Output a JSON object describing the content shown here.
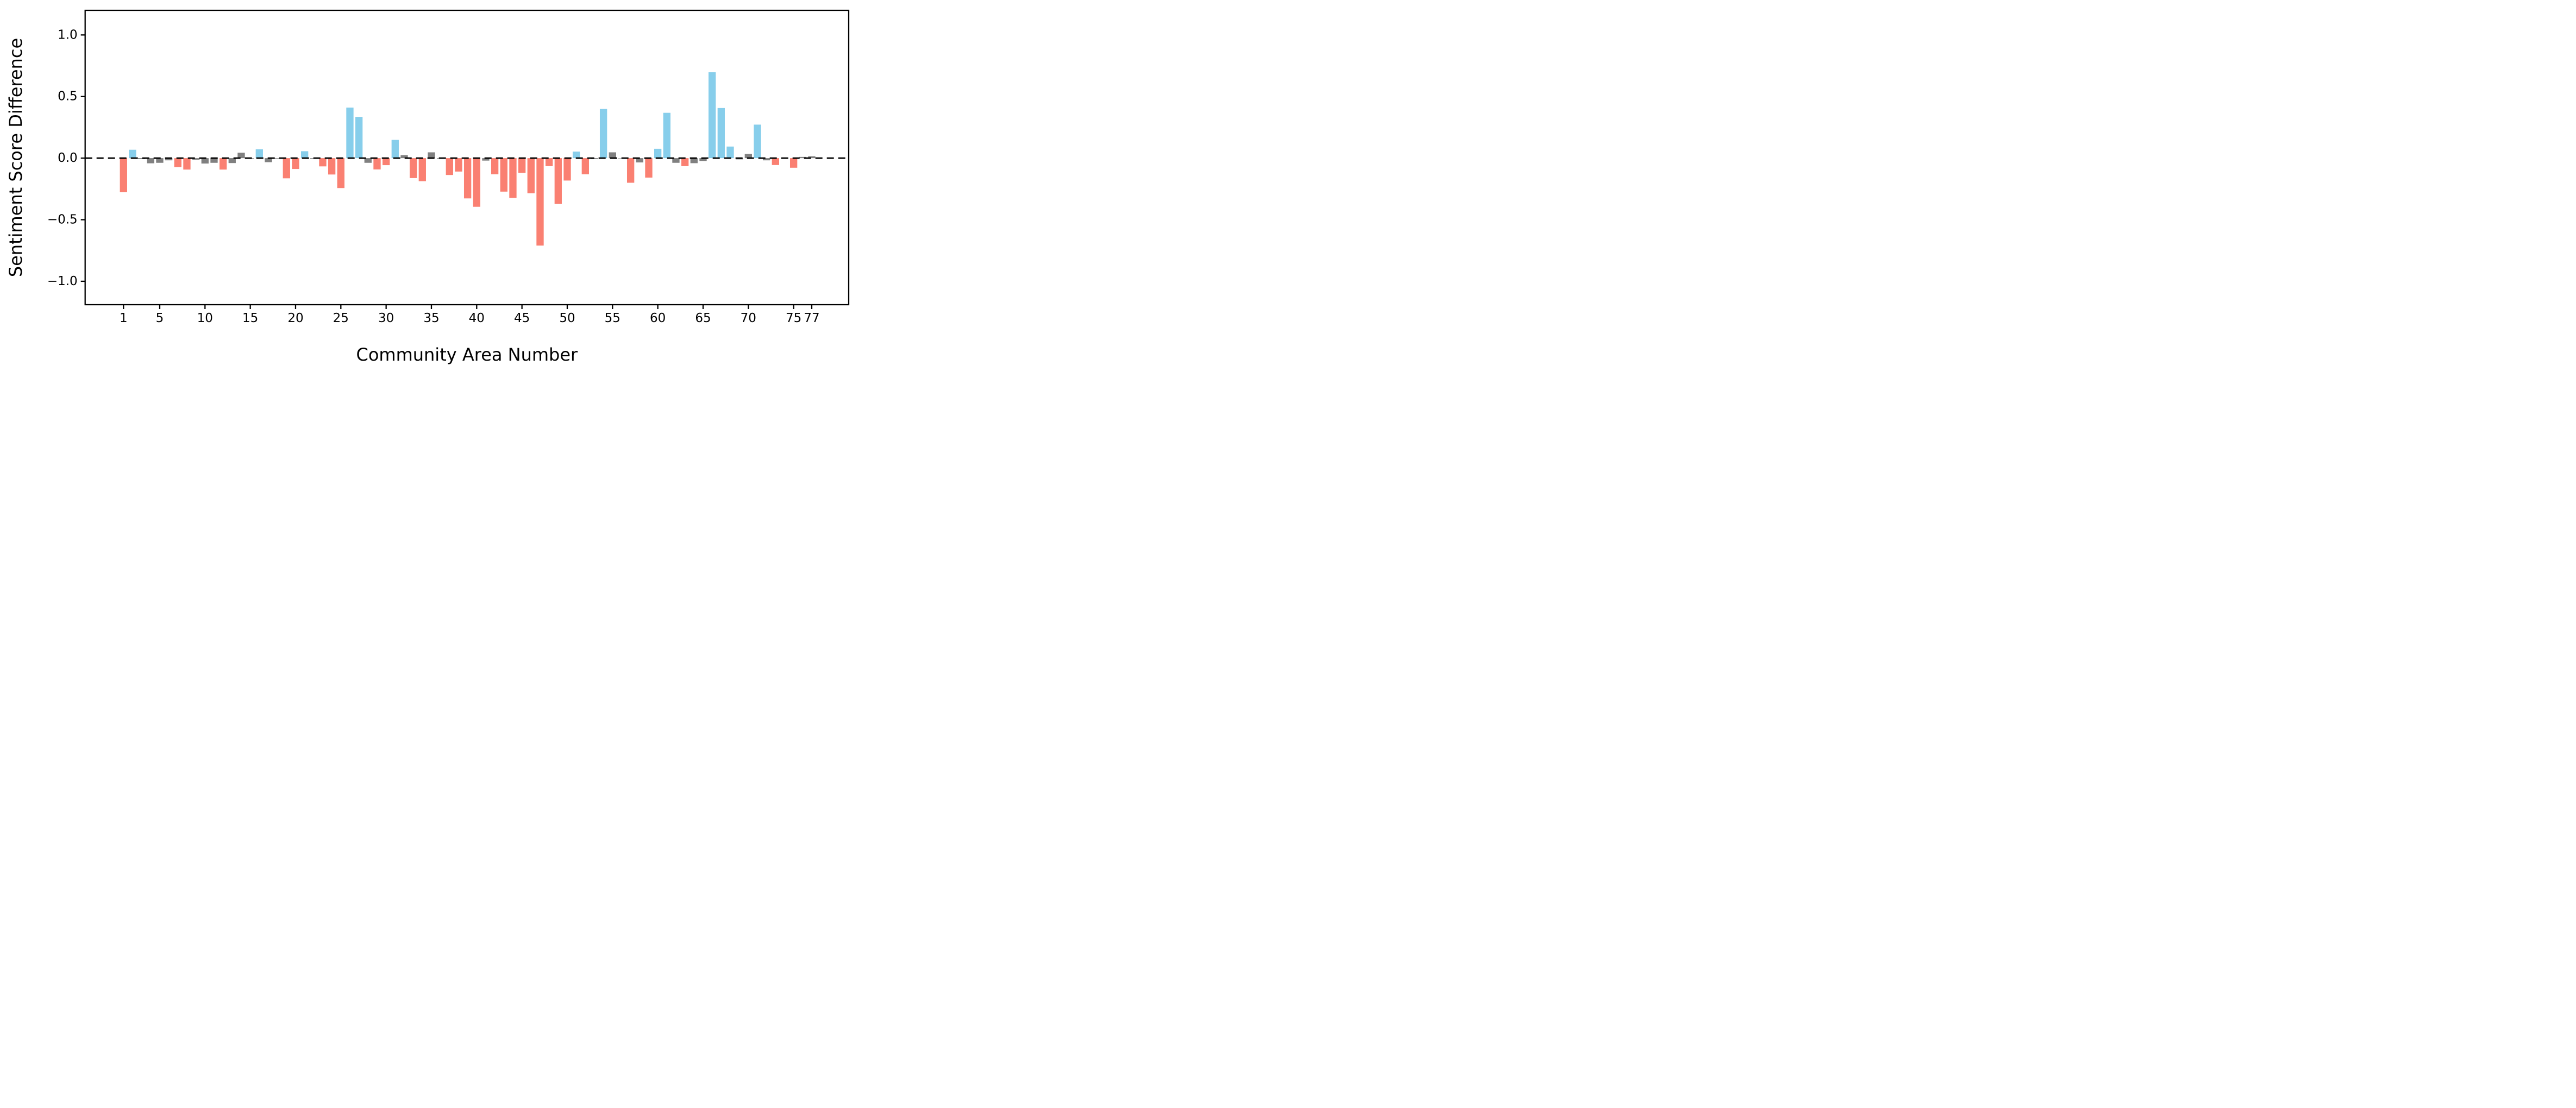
{
  "chart_data": {
    "type": "bar",
    "title": "",
    "xlabel": "Community Area Number",
    "ylabel": "Sentiment Score Difference",
    "x_start": 1,
    "x_end": 77,
    "values": [
      -0.277,
      0.068,
      -0.008,
      -0.042,
      -0.038,
      -0.018,
      -0.073,
      -0.093,
      -0.013,
      -0.044,
      -0.038,
      -0.093,
      -0.04,
      0.044,
      -0.005,
      0.072,
      -0.033,
      -0.005,
      -0.164,
      -0.088,
      0.056,
      -0.006,
      -0.067,
      -0.133,
      -0.243,
      0.41,
      0.335,
      -0.038,
      -0.092,
      -0.057,
      0.148,
      0.024,
      -0.162,
      -0.187,
      0.047,
      -0.005,
      -0.137,
      -0.109,
      -0.327,
      -0.395,
      -0.02,
      -0.131,
      -0.272,
      -0.323,
      -0.119,
      -0.285,
      -0.71,
      -0.065,
      -0.372,
      -0.182,
      0.053,
      -0.131,
      -0.008,
      0.399,
      0.047,
      -0.003,
      -0.2,
      -0.035,
      -0.158,
      0.076,
      0.368,
      -0.038,
      -0.065,
      -0.041,
      -0.023,
      0.697,
      0.407,
      0.094,
      -0.01,
      0.034,
      0.272,
      -0.018,
      -0.056,
      -0.004,
      -0.078,
      0.01,
      0.015
    ],
    "xticks": [
      1,
      5,
      10,
      15,
      20,
      25,
      30,
      35,
      40,
      45,
      50,
      55,
      60,
      65,
      70,
      75,
      77
    ],
    "yticks": [
      1.0,
      0.5,
      0.0,
      -0.5,
      -1.0
    ],
    "ytick_labels": [
      "1.0",
      "0.5",
      "0.0",
      "−0.5",
      "−1.0"
    ],
    "ylim": [
      -1.19,
      1.2
    ],
    "grid": false,
    "legend": null,
    "zero_line": {
      "style": "dashed",
      "color": "#000000"
    },
    "colors": {
      "positive": "#87CEEB",
      "negative": "#FA8072",
      "neutral": "#808080"
    },
    "neutral_threshold": 0.05,
    "bar_width_fraction": 0.8
  }
}
